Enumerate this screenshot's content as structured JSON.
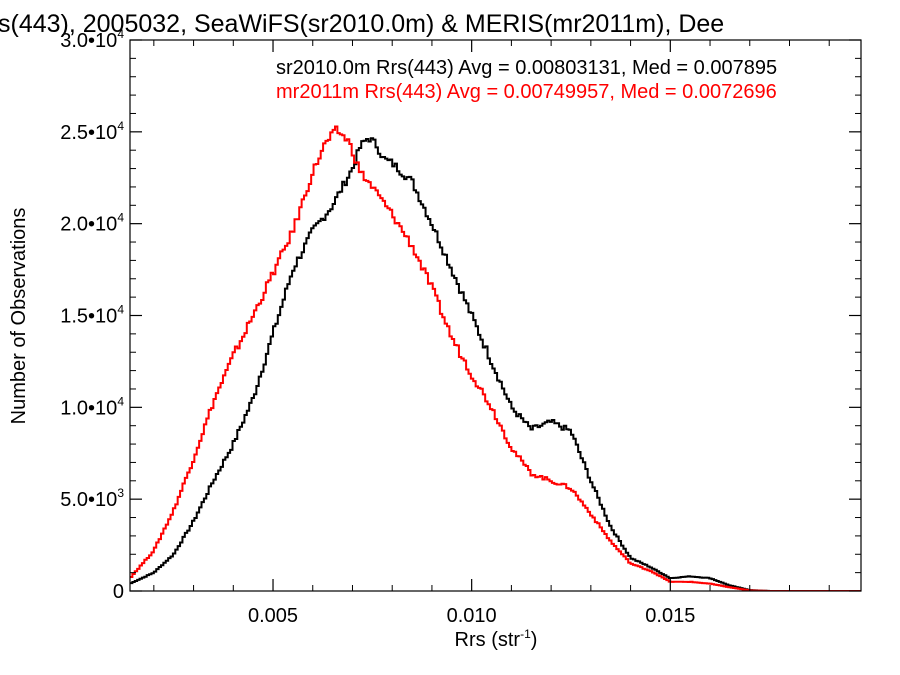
{
  "chart_data": {
    "type": "line",
    "title": "s(443), 2005032, SeaWiFS(sr2010.0m) & MERIS(mr2011m), Dee",
    "xlabel": "Rrs (str",
    "xlabel_sup": "-1",
    "xlabel_close": ")",
    "ylabel": "Number of Observations",
    "xlim": [
      0.0014,
      0.0198
    ],
    "ylim": [
      0,
      30000
    ],
    "x_ticks": [
      {
        "value": 0.005,
        "label": "0.005"
      },
      {
        "value": 0.01,
        "label": "0.010"
      },
      {
        "value": 0.015,
        "label": "0.015"
      }
    ],
    "y_ticks": [
      {
        "value": 0,
        "label": "0",
        "base": "0",
        "exp": ""
      },
      {
        "value": 5000,
        "label": "5.0•10³",
        "base": "5.0•10",
        "exp": "3"
      },
      {
        "value": 10000,
        "label": "1.0•10⁴",
        "base": "1.0•10",
        "exp": "4"
      },
      {
        "value": 15000,
        "label": "1.5•10⁴",
        "base": "1.5•10",
        "exp": "4"
      },
      {
        "value": 20000,
        "label": "2.0•10⁴",
        "base": "2.0•10",
        "exp": "4"
      },
      {
        "value": 25000,
        "label": "2.5•10⁴",
        "base": "2.5•10",
        "exp": "4"
      },
      {
        "value": 30000,
        "label": "3.0•10⁴",
        "base": "3.0•10",
        "exp": "4"
      }
    ],
    "legend_placement": "top-right",
    "grid": false,
    "series": [
      {
        "name": "sr2010.0m",
        "legend": "sr2010.0m Rrs(443) Avg = 0.00803131, Med = 0.007895",
        "color": "#000000",
        "points": [
          [
            0.0014,
            400
          ],
          [
            0.002,
            1000
          ],
          [
            0.0025,
            2000
          ],
          [
            0.003,
            3800
          ],
          [
            0.0035,
            6000
          ],
          [
            0.004,
            8000
          ],
          [
            0.0045,
            10500
          ],
          [
            0.005,
            14000
          ],
          [
            0.0055,
            17500
          ],
          [
            0.006,
            19600
          ],
          [
            0.0065,
            21000
          ],
          [
            0.007,
            23000
          ],
          [
            0.0072,
            24200
          ],
          [
            0.0074,
            24700
          ],
          [
            0.0076,
            24300
          ],
          [
            0.0078,
            23500
          ],
          [
            0.008,
            23300
          ],
          [
            0.0085,
            22300
          ],
          [
            0.009,
            20000
          ],
          [
            0.0095,
            17500
          ],
          [
            0.01,
            15000
          ],
          [
            0.0105,
            12500
          ],
          [
            0.011,
            10000
          ],
          [
            0.0115,
            8800
          ],
          [
            0.012,
            9200
          ],
          [
            0.0125,
            8700
          ],
          [
            0.013,
            6000
          ],
          [
            0.0135,
            3500
          ],
          [
            0.014,
            1800
          ],
          [
            0.0145,
            1300
          ],
          [
            0.015,
            700
          ],
          [
            0.0155,
            800
          ],
          [
            0.016,
            700
          ],
          [
            0.0165,
            300
          ],
          [
            0.017,
            50
          ],
          [
            0.0175,
            0
          ],
          [
            0.018,
            0
          ],
          [
            0.0198,
            0
          ]
        ]
      },
      {
        "name": "mr2011m",
        "legend": "mr2011m Rrs(443) Avg = 0.00749957, Med = 0.0072696",
        "color": "#ff0000",
        "points": [
          [
            0.0014,
            700
          ],
          [
            0.002,
            2200
          ],
          [
            0.0025,
            4400
          ],
          [
            0.003,
            7200
          ],
          [
            0.0035,
            10300
          ],
          [
            0.004,
            12800
          ],
          [
            0.0045,
            15000
          ],
          [
            0.005,
            17300
          ],
          [
            0.0055,
            19600
          ],
          [
            0.006,
            22800
          ],
          [
            0.0063,
            24300
          ],
          [
            0.0066,
            25100
          ],
          [
            0.0069,
            24500
          ],
          [
            0.0072,
            22800
          ],
          [
            0.0075,
            22000
          ],
          [
            0.008,
            20500
          ],
          [
            0.0085,
            18800
          ],
          [
            0.009,
            16500
          ],
          [
            0.0095,
            13800
          ],
          [
            0.01,
            11800
          ],
          [
            0.0105,
            10000
          ],
          [
            0.011,
            7800
          ],
          [
            0.0115,
            6400
          ],
          [
            0.012,
            6000
          ],
          [
            0.0125,
            5600
          ],
          [
            0.013,
            4200
          ],
          [
            0.0135,
            2700
          ],
          [
            0.014,
            1500
          ],
          [
            0.0145,
            1100
          ],
          [
            0.015,
            500
          ],
          [
            0.0155,
            500
          ],
          [
            0.016,
            400
          ],
          [
            0.0165,
            200
          ],
          [
            0.017,
            30
          ],
          [
            0.0175,
            0
          ],
          [
            0.0198,
            0
          ]
        ]
      }
    ]
  }
}
